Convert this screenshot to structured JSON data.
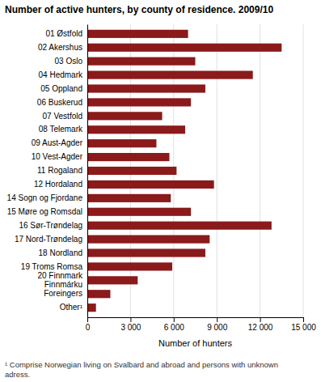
{
  "chart_data": {
    "type": "bar",
    "orientation": "horizontal",
    "title": "Number of active hunters, by county of residence. 2009/10",
    "categories": [
      "01 Østfold",
      "02 Akershus",
      "03 Oslo",
      "04 Hedmark",
      "05 Oppland",
      "06 Buskerud",
      "07 Vestfold",
      "08 Telemark",
      "09 Aust-Agder",
      "10 Vest-Agder",
      "11 Rogaland",
      "12 Hordaland",
      "14 Sogn og Fjordane",
      "15 Møre og Romsdal",
      "16 Sør-Trøndelag",
      "17 Nord-Trøndelag",
      "18 Nordland",
      "19 Troms Romsa",
      "20 Finnmark\nFinnmárku",
      "Foreingers",
      "Other¹"
    ],
    "values": [
      7000,
      13500,
      7500,
      11500,
      8200,
      7200,
      5200,
      6800,
      4800,
      5700,
      6200,
      8800,
      5800,
      7200,
      12800,
      8500,
      8200,
      5900,
      3500,
      1600,
      600
    ],
    "color": "#8B1A1A",
    "xlabel": "Number of hunters",
    "xlim": [
      0,
      15000
    ],
    "xticks": [
      0,
      {
        "value": 3000,
        "label": "3 000"
      },
      {
        "value": 6000,
        "label": "6 000"
      },
      {
        "value": 9000,
        "label": "9 000"
      },
      {
        "value": 12000,
        "label": "12 000"
      },
      {
        "value": 15000,
        "label": "15 000"
      }
    ],
    "grid": true,
    "footnote": "¹ Comprise Norwegian living on Svalbard and abroad and persons with unknown\nadress."
  }
}
